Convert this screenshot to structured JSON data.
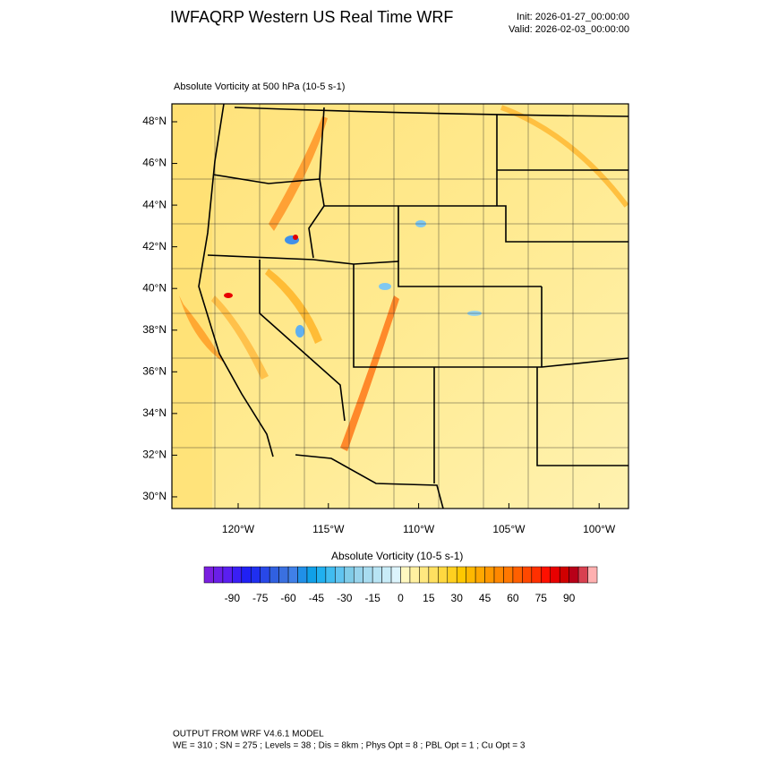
{
  "header": {
    "title": "IWFAQRP Western US Real Time WRF",
    "init": "Init: 2026-01-27_00:00:00",
    "valid": "Valid: 2026-02-03_00:00:00"
  },
  "map": {
    "title": "Absolute Vorticity at 500 hPa   (10-5 s-1)",
    "lat_labels": [
      "48°N",
      "46°N",
      "44°N",
      "42°N",
      "40°N",
      "38°N",
      "36°N",
      "34°N",
      "32°N",
      "30°N"
    ],
    "lon_labels": [
      "120°W",
      "115°W",
      "110°W",
      "105°W",
      "100°W"
    ]
  },
  "colorbar": {
    "title": "Absolute Vorticity  (10-5 s-1)",
    "colors": [
      "#7a1fe0",
      "#6a1fe8",
      "#5a1ff0",
      "#3a1ff5",
      "#2020f5",
      "#1f2ff0",
      "#2848e8",
      "#3060e0",
      "#3a70e0",
      "#4080e8",
      "#2090e8",
      "#10a0e8",
      "#20b0f0",
      "#40bcf0",
      "#60c4f0",
      "#80cce8",
      "#98d4ec",
      "#a8dcf0",
      "#b8e4f4",
      "#c8ecf8",
      "#dcf4fc",
      "#fff8c0",
      "#fff0a0",
      "#ffe880",
      "#ffe060",
      "#ffd840",
      "#ffd020",
      "#ffc800",
      "#ffb800",
      "#ffa800",
      "#ff9800",
      "#ff8800",
      "#ff7800",
      "#ff6000",
      "#ff4800",
      "#ff3000",
      "#ff1000",
      "#e80000",
      "#d00000",
      "#b80018",
      "#d84050",
      "#ffb0b0"
    ],
    "labels": [
      "-90",
      "-75",
      "-60",
      "-45",
      "-30",
      "-15",
      "0",
      "15",
      "30",
      "45",
      "60",
      "75",
      "90"
    ]
  },
  "footer": {
    "line1": "OUTPUT FROM WRF V4.6.1 MODEL",
    "line2": "WE = 310 ; SN = 275 ; Levels = 38 ; Dis = 8km ; Phys Opt = 8 ; PBL Opt = 1 ; Cu Opt = 3"
  }
}
